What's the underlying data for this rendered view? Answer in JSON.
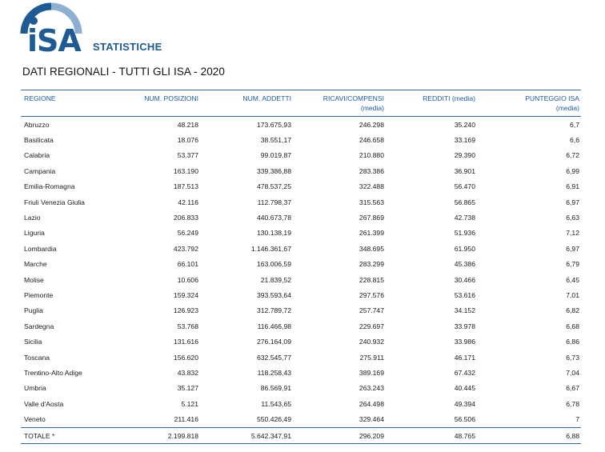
{
  "logo": {
    "mark": "iSA",
    "wordmark": "STATISTICHE",
    "accent": "#1e5a93",
    "arc_color": "#8db0d2"
  },
  "title": "DATI REGIONALI - TUTTI GLI ISA - 2020",
  "columns": [
    {
      "label": "REGIONE",
      "sub": ""
    },
    {
      "label": "NUM. POSIZIONI",
      "sub": ""
    },
    {
      "label": "NUM. ADDETTI",
      "sub": ""
    },
    {
      "label": "RICAVI/COMPENSI",
      "sub": "(media)"
    },
    {
      "label": "REDDITI (media)",
      "sub": ""
    },
    {
      "label": "PUNTEGGIO ISA",
      "sub": "(media)"
    }
  ],
  "rows": [
    [
      "Abruzzo",
      "48.218",
      "173.675,93",
      "246.298",
      "35.240",
      "6,7"
    ],
    [
      "Basilicata",
      "18.076",
      "38.551,17",
      "246.658",
      "33.169",
      "6,6"
    ],
    [
      "Calabria",
      "53.377",
      "99.019,87",
      "210.880",
      "29.390",
      "6,72"
    ],
    [
      "Campania",
      "163.190",
      "339.386,88",
      "283.386",
      "36.901",
      "6,99"
    ],
    [
      "Emilia-Romagna",
      "187.513",
      "478.537,25",
      "322.488",
      "56.470",
      "6,91"
    ],
    [
      "Friuli Venezia Giulia",
      "42.116",
      "112.798,37",
      "315.563",
      "56.865",
      "6,97"
    ],
    [
      "Lazio",
      "206.833",
      "440.673,78",
      "267.869",
      "42.738",
      "6,63"
    ],
    [
      "Liguria",
      "56.249",
      "130.138,19",
      "261.399",
      "51.936",
      "7,12"
    ],
    [
      "Lombardia",
      "423.792",
      "1.146.361,67",
      "348.695",
      "61.950",
      "6,97"
    ],
    [
      "Marche",
      "66.101",
      "163.006,59",
      "283.299",
      "45.386",
      "6,79"
    ],
    [
      "Molise",
      "10.606",
      "21.839,52",
      "228.815",
      "30.466",
      "6,45"
    ],
    [
      "Piemonte",
      "159.324",
      "393.593,64",
      "297.576",
      "53.616",
      "7,01"
    ],
    [
      "Puglia",
      "126.923",
      "312.789,72",
      "257.747",
      "34.152",
      "6,82"
    ],
    [
      "Sardegna",
      "53.768",
      "116.466,98",
      "229.697",
      "33.978",
      "6,68"
    ],
    [
      "Sicilia",
      "131.616",
      "276.164,09",
      "240.932",
      "33.986",
      "6,86"
    ],
    [
      "Toscana",
      "156.620",
      "632.545,77",
      "275.911",
      "46.171",
      "6,73"
    ],
    [
      "Trentino-Alto Adige",
      "43.832",
      "118.258,43",
      "389.169",
      "67.432",
      "7,04"
    ],
    [
      "Umbria",
      "35.127",
      "86.569,91",
      "263.243",
      "40.445",
      "6,67"
    ],
    [
      "Valle d'Aosta",
      "5.121",
      "11.543,65",
      "264.498",
      "49.394",
      "6,78"
    ],
    [
      "Veneto",
      "211.416",
      "550.426,49",
      "329.464",
      "56.506",
      "7"
    ]
  ],
  "total": [
    "TOTALE *",
    "2.199.818",
    "5.642.347,91",
    "296.209",
    "48.765",
    "6,88"
  ]
}
